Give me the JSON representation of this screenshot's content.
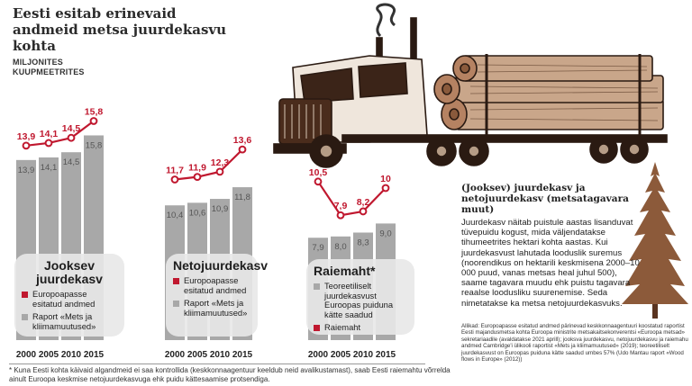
{
  "title": "Eesti esitab erinevaid andmeid metsa juurdekasvu kohta",
  "unit_label": "MILJONITES KUUPMEETRITES",
  "colors": {
    "red": "#c0182f",
    "bar": "#a8a8a8",
    "bar_dark": "#8f8f8f",
    "text": "#222222"
  },
  "panels": [
    {
      "title": "Jooksev juurdekasv",
      "legend": [
        {
          "color": "red",
          "label": "Europoapasse esitatud andmed"
        },
        {
          "color": "grey",
          "label": "Raport «Mets ja kliimamuutused»"
        }
      ]
    },
    {
      "title": "Netojuurdekasv",
      "legend": [
        {
          "color": "red",
          "label": "Europoapasse esitatud andmed"
        },
        {
          "color": "grey",
          "label": "Raport «Mets ja kliimamuutused»"
        }
      ]
    },
    {
      "title": "Raiemaht*",
      "legend": [
        {
          "color": "grey",
          "label": "Teoreetiliselt juurdekasvust Euroopas puiduna kätte saadud"
        },
        {
          "color": "red",
          "label": "Raiemaht"
        }
      ]
    }
  ],
  "chart_data": [
    {
      "type": "bar",
      "title": "Jooksev juurdekasv",
      "categories": [
        "2000",
        "2005",
        "2010",
        "2015"
      ],
      "series": [
        {
          "name": "Raport «Mets ja kliimamuutused»",
          "type": "bar",
          "values": [
            13.9,
            14.1,
            14.5,
            15.8
          ],
          "labels": [
            "13,9",
            "14,1",
            "14,5",
            "15,8"
          ]
        },
        {
          "name": "Europoapasse esitatud andmed",
          "type": "line",
          "values": [
            13.9,
            14.1,
            14.5,
            15.8
          ],
          "labels": [
            "13,9",
            "14,1",
            "14,5",
            "15,8"
          ]
        }
      ]
    },
    {
      "type": "bar",
      "title": "Netojuurdekasv",
      "categories": [
        "2000",
        "2005",
        "2010",
        "2015"
      ],
      "series": [
        {
          "name": "Raport «Mets ja kliimamuutused»",
          "type": "bar",
          "values": [
            10.4,
            10.6,
            10.9,
            11.8
          ],
          "labels": [
            "10,4",
            "10,6",
            "10,9",
            "11,8"
          ]
        },
        {
          "name": "Europoapasse esitatud andmed",
          "type": "line",
          "values": [
            11.7,
            11.9,
            12.3,
            13.6
          ],
          "labels": [
            "11,7",
            "11,9",
            "12,3",
            "13,6"
          ]
        }
      ]
    },
    {
      "type": "bar",
      "title": "Raiemaht*",
      "categories": [
        "2000",
        "2005",
        "2010",
        "2015"
      ],
      "series": [
        {
          "name": "Teoreetiliselt juurdekasvust Euroopas puiduna kätte saadud",
          "type": "bar",
          "values": [
            7.9,
            8.0,
            8.3,
            9.0
          ],
          "labels": [
            "7,9",
            "8,0",
            "8,3",
            "9,0"
          ]
        },
        {
          "name": "Raiemaht",
          "type": "line",
          "values": [
            10.5,
            7.9,
            8.2,
            10
          ],
          "labels": [
            "10,5",
            "7,9",
            "8,2",
            "10"
          ]
        }
      ]
    }
  ],
  "side": {
    "title": "(Jooksev) juurdekasv ja netojuurdekasv (metsatagavara muut)",
    "text": "Juurdekasv näitab puistule aastas lisanduvat tüvepuidu kogust, mida väljendatakse tihumeetrites hektari kohta aastas. Kui juurdekasvust lahutada looduslik suremus (noorendikus on hektarili keskmisena 2000–10 000 puud, vanas metsas heal juhul 500), saame tagavara muudu ehk puistu tagavara reaalse loodusliku suurenemise. Seda nimetatakse ka metsa netojuurdekasvuks."
  },
  "source": "Allikad: Europoapasse esitatud andmed pärinevad keskkonnaagentuuri koostatud raportist Eesti majandusmetsa kohta Euroopa ministrite metsakaitsekonverentsi «Euroopa metsad» sekretariaadile (avaldatakse 2021 aprill); jooksva juurdekasvu, netojuurdekasvu ja raiemahu andmed Cambridge'i ülikooli raportist «Mets ja kliimamuutused» (2019); teoreetiliselt juurdekasvust on Euroopas puiduna kätte saadud umbes 57% (Udo Mantau raport «Wood flows in Europe» (2012))",
  "footnote": "* Kuna Eesti kohta käivaid algandmeid ei saa kontrollida (keskkonnaagentuur keeldub neid avalikustamast), saab Eesti raiemahtu võrrelda ainult Euroopa keskmise netojuurdekasvuga ehk puidu kättesaamise protsendiga."
}
